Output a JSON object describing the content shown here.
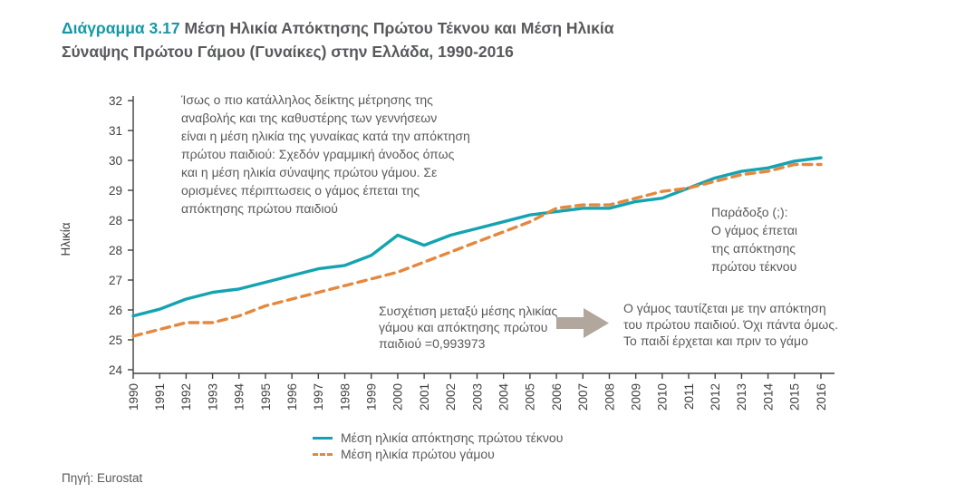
{
  "title": {
    "prefix": "Διάγραμμα 3.17",
    "text": " Μέση Ηλικία Απόκτησης Πρώτου Τέκνου και Μέση Ηλικία Σύναψης Πρώτου Γάμου (Γυναίκες) στην Ελλάδα, 1990-2016"
  },
  "annotations": {
    "main_note": "Ίσως ο πιο κατάλληλος δείκτης μέτρησης της\nαναβολής και της καθυστέρης των γεννήσεων\nείναι η μέση ηλικία της γυναίκας κατά την απόκτηση\nπρώτου παιδιού: Σχεδόν γραμμική άνοδος όπως\nκαι η μέση ηλικία σύναψης πρώτου γάμου. Σε\nορισμένες πέριπτωσεις ο γάμος έπεται της\nαπόκτησης πρώτου παιδιού",
    "paradox_note": "Παράδοξο (;):\nΟ γάμος έπεται\nτης απόκτησης\nπρώτου τέκνου",
    "correlation_note": "Συσχέτιση μεταξύ μέσης ηλικίας\nγάμου και απόκτησης πρώτου\nπαιδιού =0,993973",
    "marriage_note": "Ο γάμος ταυτίζεται με την απόκτηση\nτου πρώτου παιδιού. Όχι πάντα όμως.\nΤο παιδί έρχεται και πριν το γάμο"
  },
  "source": "Πηγή: Eurostat",
  "colors": {
    "accent": "#1598a6",
    "text": "#58595b",
    "axis": "#414042",
    "arrow": "#b1a79c"
  },
  "chart_data": {
    "type": "line",
    "title": "",
    "xlabel": "",
    "ylabel": "Ηλικία",
    "ylim": [
      24,
      32
    ],
    "grid": false,
    "legend_position": "bottom",
    "y_tick_labels": [
      "32",
      "31",
      "30",
      "29",
      "28",
      "28",
      "27",
      "26",
      "25",
      "24"
    ],
    "x": [
      1990,
      1991,
      1992,
      1993,
      1994,
      1995,
      1996,
      1997,
      1998,
      1999,
      2000,
      2001,
      2002,
      2003,
      2004,
      2005,
      2006,
      2007,
      2008,
      2009,
      2010,
      2011,
      2012,
      2013,
      2014,
      2015,
      2016
    ],
    "series": [
      {
        "name": "Μέση ηλικία απόκτησης πρώτου τέκνου",
        "style": "solid",
        "color": "#14a3b1",
        "values": [
          25.6,
          25.8,
          26.1,
          26.3,
          26.4,
          26.6,
          26.8,
          27.0,
          27.1,
          27.4,
          28.0,
          27.7,
          28.0,
          28.2,
          28.4,
          28.6,
          28.7,
          28.8,
          28.8,
          29.0,
          29.1,
          29.4,
          29.7,
          29.9,
          30.0,
          30.2,
          30.3
        ]
      },
      {
        "name": "Μέση ηλικία πρώτου γάμου",
        "style": "dashed",
        "color": "#e5883e",
        "values": [
          25.0,
          25.2,
          25.4,
          25.4,
          25.6,
          25.9,
          26.1,
          26.3,
          26.5,
          26.7,
          26.9,
          27.2,
          27.5,
          27.8,
          28.1,
          28.4,
          28.8,
          28.9,
          28.9,
          29.1,
          29.3,
          29.4,
          29.6,
          29.8,
          29.9,
          30.1,
          30.1
        ]
      }
    ]
  }
}
